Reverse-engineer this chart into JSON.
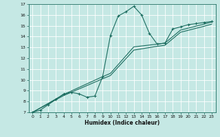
{
  "title": "",
  "xlabel": "Humidex (Indice chaleur)",
  "xlim": [
    -0.5,
    23.5
  ],
  "ylim": [
    7,
    17
  ],
  "xticks": [
    0,
    1,
    2,
    3,
    4,
    5,
    6,
    7,
    8,
    9,
    10,
    11,
    12,
    13,
    14,
    15,
    16,
    17,
    18,
    19,
    20,
    21,
    22,
    23
  ],
  "yticks": [
    7,
    8,
    9,
    10,
    11,
    12,
    13,
    14,
    15,
    16,
    17
  ],
  "bg_color": "#c5e8e4",
  "line_color": "#1a6b5e",
  "grid_color": "#ffffff",
  "curve1_x": [
    0,
    1,
    2,
    3,
    4,
    5,
    6,
    7,
    8,
    9,
    10,
    11,
    12,
    13,
    14,
    15,
    16,
    17,
    18,
    19,
    20,
    21,
    22,
    23
  ],
  "curve1_y": [
    7.0,
    7.2,
    7.7,
    8.2,
    8.7,
    8.85,
    8.7,
    8.4,
    8.5,
    10.3,
    14.1,
    15.9,
    16.3,
    16.8,
    16.0,
    14.3,
    13.3,
    13.4,
    14.7,
    14.9,
    15.1,
    15.2,
    15.3,
    15.4
  ],
  "curve2_x": [
    0,
    4,
    9,
    10,
    13,
    16,
    17,
    19,
    22,
    23
  ],
  "curve2_y": [
    7.0,
    8.65,
    10.3,
    10.6,
    13.05,
    13.3,
    13.4,
    14.6,
    15.15,
    15.35
  ],
  "curve3_x": [
    0,
    4,
    9,
    10,
    13,
    16,
    17,
    19,
    22,
    23
  ],
  "curve3_y": [
    7.0,
    8.55,
    10.1,
    10.4,
    12.75,
    13.1,
    13.2,
    14.4,
    14.95,
    15.15
  ]
}
